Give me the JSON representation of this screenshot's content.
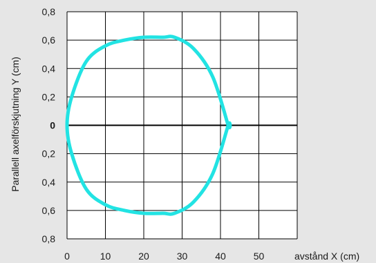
{
  "chart_data": {
    "type": "line",
    "title": "",
    "xlabel": "avstånd X (cm)",
    "ylabel": "Parallell axelförskjutning Y (cm)",
    "xlim": [
      0,
      60
    ],
    "ylim": [
      -0.8,
      0.8
    ],
    "x_ticks": [
      0,
      10,
      20,
      30,
      40,
      50
    ],
    "y_ticks": [
      {
        "value": 0.8,
        "label": "0,8"
      },
      {
        "value": 0.6,
        "label": "0,6"
      },
      {
        "value": 0.4,
        "label": "0,4"
      },
      {
        "value": 0.2,
        "label": "0,2"
      },
      {
        "value": 0,
        "label": "0"
      },
      {
        "value": -0.2,
        "label": "0,2"
      },
      {
        "value": -0.4,
        "label": "0,4"
      },
      {
        "value": -0.6,
        "label": "0,6"
      },
      {
        "value": -0.8,
        "label": "0,8"
      }
    ],
    "grid": true,
    "zero_line": true,
    "series": [
      {
        "color": "#22e3e3",
        "closed": true,
        "x": [
          0,
          1.2,
          5,
          10,
          15,
          20,
          25,
          28,
          33,
          38,
          42,
          42,
          38,
          33,
          28,
          25,
          20,
          15,
          10,
          5,
          1.2
        ],
        "y": [
          0,
          0.2,
          0.45,
          0.56,
          0.6,
          0.62,
          0.62,
          0.62,
          0.54,
          0.34,
          0.0,
          0.0,
          -0.34,
          -0.54,
          -0.62,
          -0.62,
          -0.62,
          -0.6,
          -0.56,
          -0.45,
          -0.2
        ]
      }
    ]
  },
  "colors": {
    "background": "#e6e6e6",
    "plot_area": "#ffffff",
    "grid": "#000000",
    "series": "#22e3e3"
  }
}
